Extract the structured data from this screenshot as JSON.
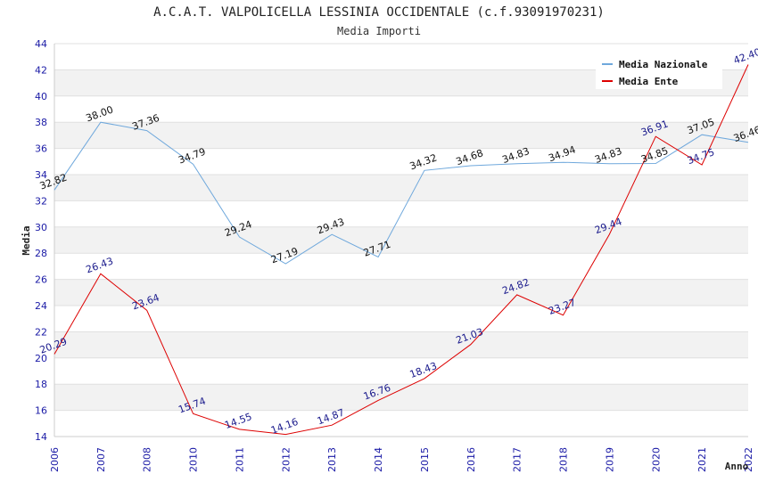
{
  "chart_data": {
    "type": "line",
    "title": "A.C.A.T. VALPOLICELLA LESSINIA OCCIDENTALE (c.f.93091970231)",
    "subtitle": "Media Importi",
    "xlabel": "Anno",
    "ylabel": "Media",
    "ylim": [
      14,
      44
    ],
    "yticks": [
      14,
      16,
      18,
      20,
      22,
      24,
      26,
      28,
      30,
      32,
      34,
      36,
      38,
      40,
      42,
      44
    ],
    "grid": "horizontal alternating bands",
    "legend_position": "top-right",
    "categories": [
      "2006",
      "2007",
      "2008",
      "2010",
      "2011",
      "2012",
      "2013",
      "2014",
      "2015",
      "2016",
      "2017",
      "2018",
      "2019",
      "2020",
      "2021",
      "2022"
    ],
    "series": [
      {
        "name": "Media Nazionale",
        "color": "#6fa8dc",
        "label_color": "#111111",
        "values": [
          32.82,
          38.0,
          37.36,
          34.79,
          29.24,
          27.19,
          29.43,
          27.71,
          34.32,
          34.68,
          34.83,
          34.94,
          34.83,
          34.85,
          37.05,
          36.46
        ],
        "labels": [
          "32.82",
          "38.00",
          "37.36",
          "34.79",
          "29.24",
          "27.19",
          "29.43",
          "27.71",
          "34.32",
          "34.68",
          "34.83",
          "34.94",
          "34.83",
          "34.85",
          "37.05",
          "36.46"
        ]
      },
      {
        "name": "Media Ente",
        "color": "#dd0000",
        "label_color": "#1a1a8c",
        "values": [
          20.29,
          26.43,
          23.64,
          15.74,
          14.55,
          14.16,
          14.87,
          16.76,
          18.43,
          21.03,
          24.82,
          23.27,
          29.44,
          36.91,
          34.75,
          42.4
        ],
        "labels": [
          "20.29",
          "26.43",
          "23.64",
          "15.74",
          "14.55",
          "14.16",
          "14.87",
          "16.76",
          "18.43",
          "21.03",
          "24.82",
          "23.27",
          "29.44",
          "36.91",
          "34.75",
          "42.40"
        ]
      }
    ]
  }
}
